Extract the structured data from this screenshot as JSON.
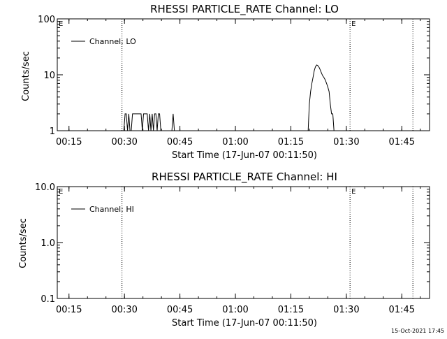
{
  "footer": {
    "timestamp": "15-Oct-2021 17:45"
  },
  "chart_data": [
    {
      "type": "line",
      "title": "RHESSI PARTICLE_RATE Channel: LO",
      "xlabel": "Start Time (17-Jun-07 00:11:50)",
      "ylabel": "Counts/sec",
      "yscale": "log",
      "xlim": [
        "00:11:50",
        "01:52:30"
      ],
      "ylim": [
        1,
        100
      ],
      "x_tick_labels": [
        "00:15",
        "00:30",
        "00:45",
        "01:00",
        "01:15",
        "01:30",
        "01:45"
      ],
      "y_tick_labels": [
        "1",
        "10",
        "100"
      ],
      "y_ticks": [
        1,
        10,
        100
      ],
      "legend": {
        "position": "top-left",
        "entries": [
          "Channel: LO"
        ]
      },
      "event_markers": [
        {
          "time": "00:29:20",
          "label": ""
        },
        {
          "time": "01:31:00",
          "label": "E"
        },
        {
          "time": "01:48:00",
          "label": ""
        },
        {
          "time": "00:11:50",
          "label": "E"
        }
      ],
      "series": [
        {
          "name": "Channel: LO",
          "x": [
            "00:29:30",
            "00:29:50",
            "00:30:10",
            "00:30:30",
            "00:30:50",
            "00:31:10",
            "00:31:30",
            "00:31:50",
            "00:32:10",
            "00:32:30",
            "00:32:50",
            "00:33:10",
            "00:33:30",
            "00:33:50",
            "00:34:10",
            "00:34:30",
            "00:34:50",
            "00:35:10",
            "00:35:30",
            "00:35:50",
            "00:36:10",
            "00:36:30",
            "00:36:50",
            "00:37:10",
            "00:37:30",
            "00:37:50",
            "00:38:10",
            "00:38:30",
            "00:38:50",
            "00:39:10",
            "00:39:30",
            "00:39:50",
            "00:40:10",
            "00:40:30",
            "00:40:50",
            "00:41:10",
            "00:41:30",
            "00:41:50",
            "00:42:10",
            "00:42:30",
            "00:42:50",
            "00:43:10",
            "00:43:30",
            "00:43:50",
            "01:19:40",
            "01:20:00",
            "01:20:20",
            "01:20:40",
            "01:21:00",
            "01:21:20",
            "01:21:40",
            "01:22:00",
            "01:22:20",
            "01:22:40",
            "01:23:00",
            "01:23:20",
            "01:23:40",
            "01:24:00",
            "01:24:20",
            "01:24:40",
            "01:25:00",
            "01:25:20",
            "01:25:40",
            "01:26:00",
            "01:26:20",
            "01:26:40",
            "01:27:00",
            "01:27:20"
          ],
          "y": [
            1,
            1,
            2,
            2,
            1,
            2,
            1,
            1,
            2,
            2,
            2,
            2,
            2,
            2,
            2,
            2,
            1,
            2,
            2,
            2,
            2,
            1,
            2,
            1,
            2,
            1,
            2,
            2,
            1,
            2,
            2,
            1,
            1,
            1,
            1,
            1,
            1,
            1,
            1,
            1,
            1,
            2,
            1,
            1,
            1,
            3,
            5,
            7,
            9,
            12,
            14,
            15,
            14.5,
            13.5,
            12,
            10.5,
            9.5,
            8.8,
            8,
            7,
            6,
            5,
            3,
            2,
            2,
            1,
            1,
            1
          ]
        }
      ]
    },
    {
      "type": "line",
      "title": "RHESSI PARTICLE_RATE Channel: HI",
      "xlabel": "Start Time (17-Jun-07 00:11:50)",
      "ylabel": "Counts/sec",
      "yscale": "log",
      "xlim": [
        "00:11:50",
        "01:52:30"
      ],
      "ylim": [
        0.1,
        10
      ],
      "x_tick_labels": [
        "00:15",
        "00:30",
        "00:45",
        "01:00",
        "01:15",
        "01:30",
        "01:45"
      ],
      "y_tick_labels": [
        "0.1",
        "1.0",
        "10.0"
      ],
      "y_ticks": [
        0.1,
        1,
        10
      ],
      "legend": {
        "position": "top-left",
        "entries": [
          "Channel: HI"
        ]
      },
      "event_markers": [
        {
          "time": "00:29:20",
          "label": ""
        },
        {
          "time": "01:31:00",
          "label": "E"
        },
        {
          "time": "01:48:00",
          "label": ""
        },
        {
          "time": "00:11:50",
          "label": "E"
        }
      ],
      "series": [
        {
          "name": "Channel: HI",
          "x": [],
          "y": []
        }
      ]
    }
  ]
}
